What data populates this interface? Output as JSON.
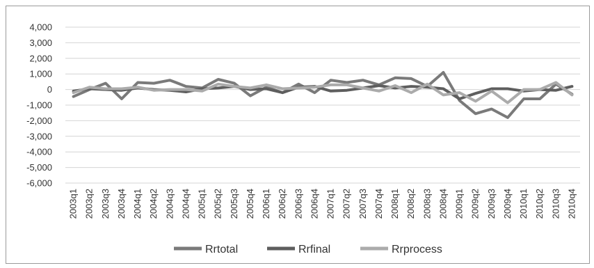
{
  "chart_data": {
    "type": "line",
    "title": "",
    "xlabel": "",
    "ylabel": "",
    "ylim": [
      -6000,
      4000
    ],
    "ytick_step": 1000,
    "yticks": [
      "4,000",
      "3,000",
      "2,000",
      "1,000",
      "0",
      "-1,000",
      "-2,000",
      "-3,000",
      "-4,000",
      "-5,000",
      "-6,000"
    ],
    "grid": true,
    "legend_position": "bottom",
    "categories": [
      "2003q1",
      "2003q2",
      "2003q3",
      "2003q4",
      "2004q1",
      "2004q2",
      "2004q3",
      "2004q4",
      "2005q1",
      "2005q2",
      "2005q3",
      "2005q4",
      "2006q1",
      "2006q2",
      "2006q3",
      "2006q4",
      "2007q1",
      "2007q2",
      "2007q3",
      "2007q4",
      "2008q1",
      "2008q2",
      "2008q3",
      "2008q4",
      "2009q1",
      "2009q2",
      "2009q3",
      "2009q4",
      "2010q1",
      "2010q2",
      "2010q3",
      "2010q4"
    ],
    "series": [
      {
        "name": "Rrtotal",
        "color": "#7a7a7a",
        "values": [
          -450,
          0,
          400,
          -600,
          450,
          400,
          600,
          200,
          100,
          650,
          400,
          -400,
          150,
          -200,
          350,
          -200,
          600,
          450,
          600,
          300,
          750,
          700,
          200,
          1100,
          -700,
          -1550,
          -1250,
          -1800,
          -600,
          -600,
          350,
          -300
        ]
      },
      {
        "name": "Rrfinal",
        "color": "#5e5e5e",
        "values": [
          -100,
          50,
          0,
          -50,
          100,
          0,
          -50,
          -150,
          50,
          100,
          200,
          0,
          50,
          -200,
          150,
          200,
          -100,
          -50,
          100,
          250,
          100,
          200,
          150,
          50,
          -600,
          -250,
          50,
          50,
          -100,
          0,
          -50,
          200
        ]
      },
      {
        "name": "Rrprocess",
        "color": "#ababab",
        "values": [
          -200,
          150,
          50,
          50,
          150,
          -50,
          0,
          0,
          -100,
          350,
          200,
          100,
          300,
          50,
          100,
          150,
          300,
          300,
          100,
          -100,
          250,
          -200,
          350,
          -350,
          -200,
          -750,
          -100,
          -850,
          0,
          0,
          450,
          -350
        ]
      }
    ]
  }
}
